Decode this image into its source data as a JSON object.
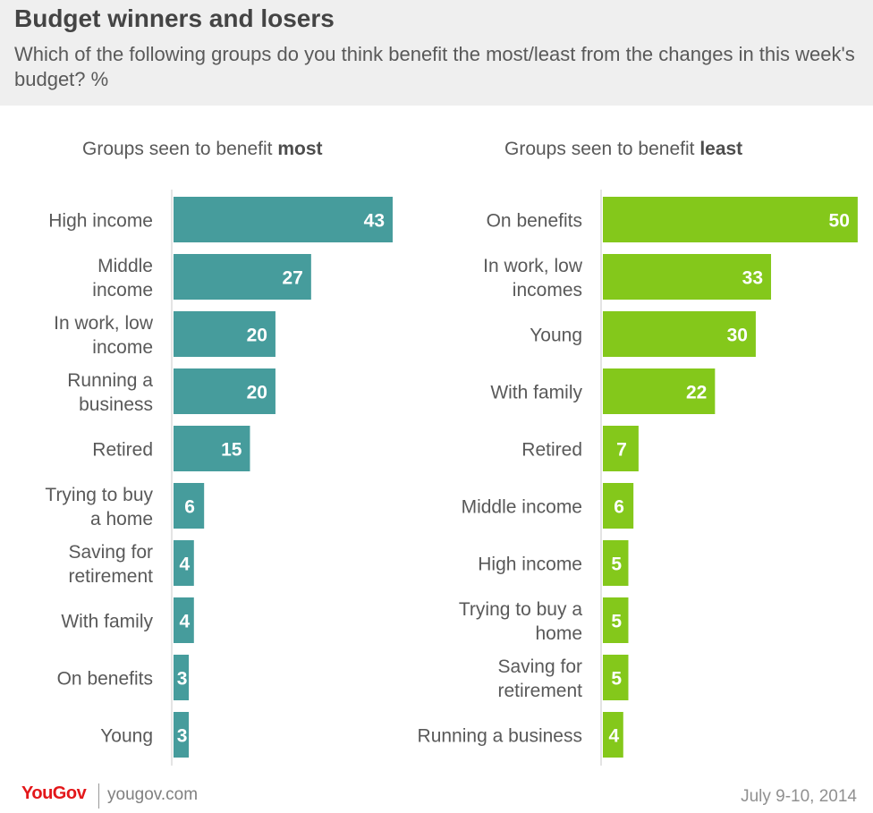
{
  "header": {
    "title": "Budget winners and losers",
    "subtitle": "Which of the following groups do you think benefit the most/least from the changes in this week's budget? %"
  },
  "chart_data": [
    {
      "type": "bar",
      "orientation": "horizontal",
      "title_prefix": "Groups seen to benefit ",
      "title_bold": "most",
      "color": "#469c9c",
      "categories": [
        [
          "High income"
        ],
        [
          "Middle",
          "income"
        ],
        [
          "In work, low",
          "income"
        ],
        [
          "Running a",
          "business"
        ],
        [
          "Retired"
        ],
        [
          "Trying to buy",
          "a home"
        ],
        [
          "Saving for",
          "retirement"
        ],
        [
          "With family"
        ],
        [
          "On benefits"
        ],
        [
          "Young"
        ]
      ],
      "values": [
        43,
        27,
        20,
        20,
        15,
        6,
        4,
        4,
        3,
        3
      ]
    },
    {
      "type": "bar",
      "orientation": "horizontal",
      "title_prefix": "Groups seen to benefit ",
      "title_bold": "least",
      "color": "#84c81b",
      "categories": [
        [
          "On benefits"
        ],
        [
          "In work, low",
          "incomes"
        ],
        [
          "Young"
        ],
        [
          "With family"
        ],
        [
          "Retired"
        ],
        [
          "Middle income"
        ],
        [
          "High income"
        ],
        [
          "Trying to buy a",
          "home"
        ],
        [
          "Saving for",
          "retirement"
        ],
        [
          "Running a business"
        ]
      ],
      "values": [
        50,
        33,
        30,
        22,
        7,
        6,
        5,
        5,
        5,
        4
      ]
    }
  ],
  "footer": {
    "logo": "YouGov",
    "site": "yougov.com",
    "date": "July 9-10, 2014"
  }
}
